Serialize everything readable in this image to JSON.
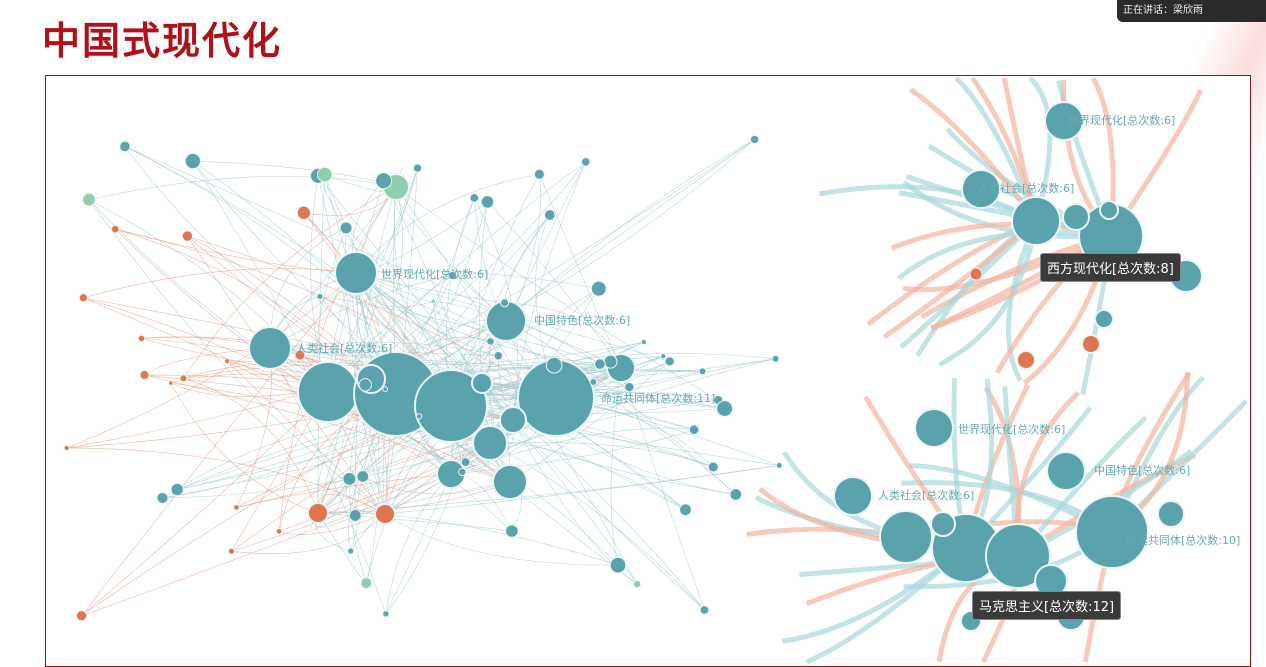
{
  "slide": {
    "title": "中国式现代化"
  },
  "meeting": {
    "speaker_label": "正在讲话：梁欣雨"
  },
  "colors": {
    "node_main": "#5aa3ac",
    "node_orange": "#e0764f",
    "node_green": "#8fcfb0",
    "title": "#b01018"
  },
  "main_graph": {
    "labels": [
      "世界现代化[总次数:6]",
      "中国特色[总次数:6]",
      "人类社会[总次数:6]",
      "命运共同体[总次数:11]"
    ]
  },
  "panel_top": {
    "labels": [
      "世界现代化[总次数:6]",
      "人类社会[总次数:6]"
    ],
    "tooltip": "西方现代化[总次数:8]"
  },
  "panel_bottom": {
    "labels": [
      "世界现代化[总次数:6]",
      "中国特色[总次数:6]",
      "人类社会[总次数:6]",
      "命运共同体[总次数:10]"
    ],
    "tooltip": "马克思主义[总次数:12]"
  }
}
